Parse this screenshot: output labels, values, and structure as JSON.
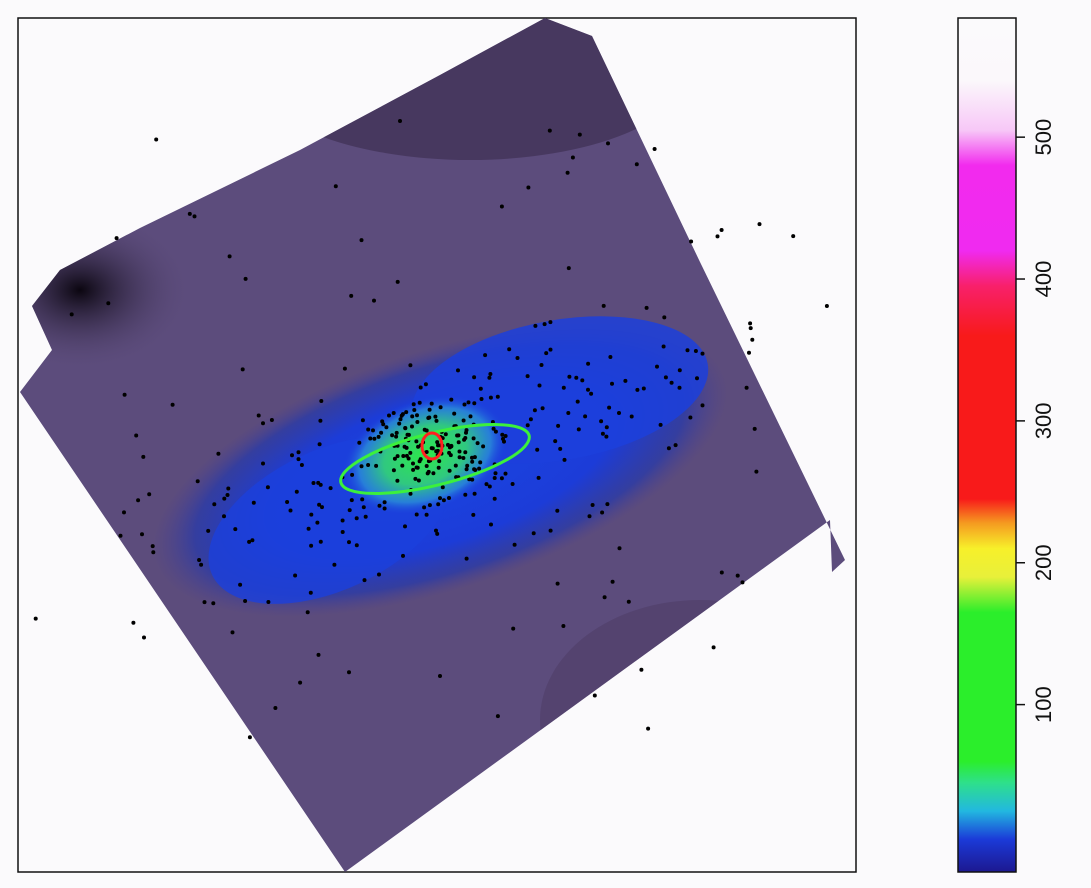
{
  "chart_data": {
    "type": "heatmap",
    "colorbar": {
      "ylim": [
        -18,
        584
      ],
      "yticks": [
        100,
        200,
        300,
        400,
        500
      ],
      "colorscale": [
        {
          "value": -18,
          "color": "#1c1890"
        },
        {
          "value": 5,
          "color": "#1b3ad8"
        },
        {
          "value": 25,
          "color": "#22b8e0"
        },
        {
          "value": 45,
          "color": "#2ee08a"
        },
        {
          "value": 60,
          "color": "#2bee2b"
        },
        {
          "value": 165,
          "color": "#2bee2b"
        },
        {
          "value": 190,
          "color": "#e8f03a"
        },
        {
          "value": 210,
          "color": "#f7f02a"
        },
        {
          "value": 228,
          "color": "#f59a20"
        },
        {
          "value": 245,
          "color": "#f81a1a"
        },
        {
          "value": 360,
          "color": "#f81a1a"
        },
        {
          "value": 395,
          "color": "#f8206a"
        },
        {
          "value": 420,
          "color": "#f02af0"
        },
        {
          "value": 480,
          "color": "#f22aee"
        },
        {
          "value": 505,
          "color": "#f7c8f7"
        },
        {
          "value": 540,
          "color": "#fbf8fb"
        },
        {
          "value": 584,
          "color": "#fbfafc"
        }
      ]
    }
  }
}
